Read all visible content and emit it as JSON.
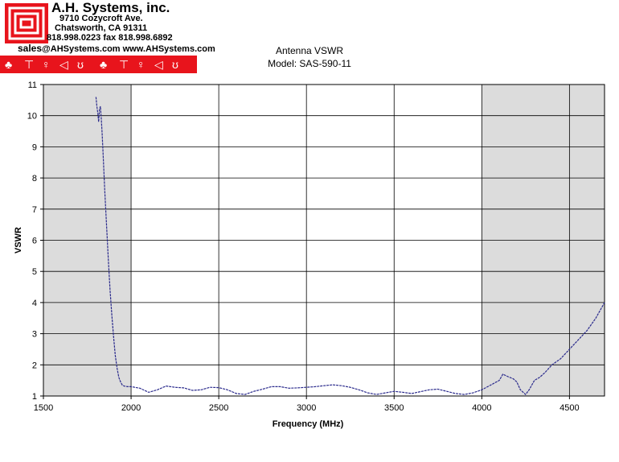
{
  "company": {
    "name": "A.H. Systems, inc.",
    "address": "9710 Cozycroft Ave.",
    "city": "Chatsworth, CA 91311",
    "phone": "818.998.0223 fax 818.998.6892",
    "sales_prefix": "sales",
    "contact": "@AHSystems.com www.AHSystems.com",
    "brand_color": "#e8141c",
    "icons": [
      "antenna-icon",
      "dipole-icon",
      "dish-icon",
      "horn-icon",
      "loop-icon",
      "antenna-icon",
      "dipole-icon",
      "dish-icon",
      "horn-icon",
      "loop-icon"
    ]
  },
  "chart_data": {
    "type": "line",
    "title": "Antenna VSWR",
    "subtitle": "Model: SAS-590-11",
    "xlabel": "Frequency (MHz)",
    "ylabel": "VSWR",
    "xlim": [
      1500,
      4700
    ],
    "ylim": [
      1,
      11
    ],
    "xticks": [
      1500,
      2000,
      2500,
      3000,
      3500,
      4000,
      4500
    ],
    "yticks": [
      1,
      2,
      3,
      4,
      5,
      6,
      7,
      8,
      9,
      10,
      11
    ],
    "grid": true,
    "shaded_regions": [
      [
        1500,
        2000
      ],
      [
        4000,
        4700
      ]
    ],
    "colors": {
      "line": "#2a2a8c",
      "shade": "#dcdcdc",
      "grid": "#000000"
    },
    "series": [
      {
        "x": [
          1800,
          1805,
          1810,
          1815,
          1820,
          1825,
          1830,
          1835,
          1840,
          1850,
          1860,
          1870,
          1880,
          1890,
          1900,
          1910,
          1920,
          1930,
          1940,
          1950,
          1960,
          1970,
          1980,
          1990,
          2000,
          2050,
          2100,
          2150,
          2200,
          2250,
          2300,
          2350,
          2400,
          2450,
          2500,
          2550,
          2600,
          2650,
          2700,
          2750,
          2800,
          2850,
          2900,
          2950,
          3000,
          3050,
          3100,
          3150,
          3200,
          3250,
          3300,
          3350,
          3400,
          3450,
          3500,
          3550,
          3600,
          3650,
          3700,
          3750,
          3800,
          3850,
          3900,
          3950,
          4000,
          4050,
          4100,
          4120,
          4150,
          4180,
          4200,
          4220,
          4250,
          4270,
          4300,
          4330,
          4360,
          4400,
          4450,
          4500,
          4550,
          4600,
          4650,
          4700
        ],
        "y": [
          10.6,
          10.3,
          10.1,
          9.8,
          10.2,
          10.3,
          9.9,
          9.4,
          8.8,
          7.6,
          6.5,
          5.4,
          4.4,
          3.6,
          2.9,
          2.3,
          1.9,
          1.6,
          1.45,
          1.35,
          1.32,
          1.31,
          1.3,
          1.3,
          1.3,
          1.25,
          1.12,
          1.2,
          1.32,
          1.28,
          1.26,
          1.18,
          1.2,
          1.28,
          1.27,
          1.2,
          1.08,
          1.05,
          1.15,
          1.22,
          1.3,
          1.3,
          1.25,
          1.26,
          1.28,
          1.3,
          1.33,
          1.36,
          1.33,
          1.28,
          1.2,
          1.1,
          1.05,
          1.1,
          1.15,
          1.12,
          1.08,
          1.14,
          1.2,
          1.22,
          1.15,
          1.08,
          1.05,
          1.1,
          1.2,
          1.35,
          1.5,
          1.7,
          1.62,
          1.55,
          1.45,
          1.2,
          1.05,
          1.2,
          1.5,
          1.6,
          1.75,
          2.0,
          2.2,
          2.5,
          2.8,
          3.1,
          3.5,
          4.0
        ]
      }
    ]
  }
}
